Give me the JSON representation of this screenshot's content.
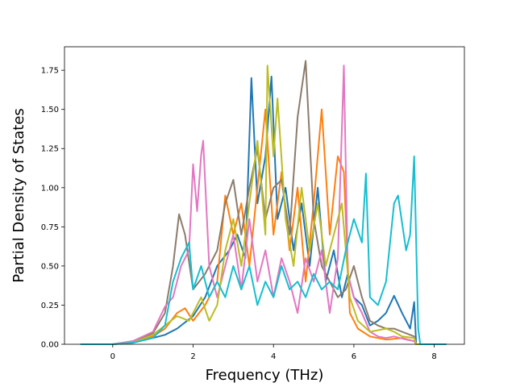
{
  "chart_data": {
    "type": "line",
    "xlabel": "Frequency (THz)",
    "ylabel": "Partial Density of States",
    "xlim": [
      -1.2,
      8.75
    ],
    "ylim": [
      0,
      1.9
    ],
    "x_ticks": [
      0,
      2,
      4,
      6,
      8
    ],
    "y_ticks": [
      0.0,
      0.25,
      0.5,
      0.75,
      1.0,
      1.25,
      1.5,
      1.75
    ],
    "x_tick_labels": [
      "0",
      "2",
      "4",
      "6",
      "8"
    ],
    "y_tick_labels": [
      "0.00",
      "0.25",
      "0.50",
      "0.75",
      "1.00",
      "1.25",
      "1.50",
      "1.75"
    ],
    "grid": false,
    "legend": "none",
    "series": [
      {
        "color": "#1f77b4",
        "points": [
          [
            -0.8,
            0
          ],
          [
            0,
            0
          ],
          [
            0.5,
            0.01
          ],
          [
            1.0,
            0.04
          ],
          [
            1.3,
            0.06
          ],
          [
            1.6,
            0.1
          ],
          [
            2.0,
            0.18
          ],
          [
            2.3,
            0.3
          ],
          [
            2.6,
            0.5
          ],
          [
            2.9,
            0.6
          ],
          [
            3.1,
            0.7
          ],
          [
            3.3,
            0.55
          ],
          [
            3.45,
            1.7
          ],
          [
            3.6,
            0.9
          ],
          [
            3.8,
            1.2
          ],
          [
            3.95,
            1.71
          ],
          [
            4.1,
            0.8
          ],
          [
            4.3,
            1.0
          ],
          [
            4.5,
            0.6
          ],
          [
            4.7,
            0.9
          ],
          [
            4.9,
            0.5
          ],
          [
            5.1,
            1.0
          ],
          [
            5.3,
            0.4
          ],
          [
            5.5,
            0.6
          ],
          [
            5.7,
            0.3
          ],
          [
            5.85,
            0.45
          ],
          [
            6.0,
            0.3
          ],
          [
            6.2,
            0.25
          ],
          [
            6.4,
            0.12
          ],
          [
            6.6,
            0.15
          ],
          [
            6.8,
            0.2
          ],
          [
            7.0,
            0.31
          ],
          [
            7.2,
            0.2
          ],
          [
            7.4,
            0.1
          ],
          [
            7.5,
            0.27
          ],
          [
            7.55,
            0
          ],
          [
            8.3,
            0
          ]
        ]
      },
      {
        "color": "#ff7f0e",
        "points": [
          [
            -0.8,
            0
          ],
          [
            0,
            0
          ],
          [
            0.5,
            0.01
          ],
          [
            1.0,
            0.05
          ],
          [
            1.3,
            0.1
          ],
          [
            1.6,
            0.2
          ],
          [
            1.8,
            0.23
          ],
          [
            2.0,
            0.15
          ],
          [
            2.3,
            0.25
          ],
          [
            2.6,
            0.4
          ],
          [
            2.8,
            0.95
          ],
          [
            3.0,
            0.7
          ],
          [
            3.2,
            0.9
          ],
          [
            3.4,
            0.5
          ],
          [
            3.6,
            1.0
          ],
          [
            3.8,
            1.5
          ],
          [
            4.0,
            0.7
          ],
          [
            4.2,
            1.1
          ],
          [
            4.4,
            0.6
          ],
          [
            4.6,
            1.0
          ],
          [
            4.8,
            0.4
          ],
          [
            5.0,
            0.9
          ],
          [
            5.2,
            1.5
          ],
          [
            5.4,
            0.7
          ],
          [
            5.6,
            1.2
          ],
          [
            5.75,
            1.1
          ],
          [
            5.9,
            0.2
          ],
          [
            6.1,
            0.1
          ],
          [
            6.4,
            0.05
          ],
          [
            6.8,
            0.03
          ],
          [
            7.2,
            0.04
          ],
          [
            7.5,
            0.02
          ],
          [
            7.55,
            0
          ],
          [
            8.3,
            0
          ]
        ]
      },
      {
        "color": "#8c7b6b",
        "points": [
          [
            -0.8,
            0
          ],
          [
            0,
            0
          ],
          [
            0.5,
            0.02
          ],
          [
            1.0,
            0.07
          ],
          [
            1.3,
            0.2
          ],
          [
            1.5,
            0.5
          ],
          [
            1.65,
            0.83
          ],
          [
            1.8,
            0.7
          ],
          [
            2.0,
            0.35
          ],
          [
            2.3,
            0.45
          ],
          [
            2.6,
            0.6
          ],
          [
            2.8,
            0.9
          ],
          [
            3.0,
            1.05
          ],
          [
            3.2,
            0.7
          ],
          [
            3.4,
            1.0
          ],
          [
            3.6,
            1.25
          ],
          [
            3.8,
            0.8
          ],
          [
            4.0,
            1.0
          ],
          [
            4.2,
            1.05
          ],
          [
            4.4,
            0.7
          ],
          [
            4.6,
            1.45
          ],
          [
            4.8,
            1.81
          ],
          [
            5.0,
            0.8
          ],
          [
            5.2,
            0.5
          ],
          [
            5.4,
            0.4
          ],
          [
            5.6,
            0.3
          ],
          [
            5.8,
            0.35
          ],
          [
            6.0,
            0.5
          ],
          [
            6.2,
            0.3
          ],
          [
            6.4,
            0.15
          ],
          [
            6.6,
            0.12
          ],
          [
            6.8,
            0.1
          ],
          [
            7.0,
            0.1
          ],
          [
            7.2,
            0.08
          ],
          [
            7.5,
            0.05
          ],
          [
            7.55,
            0
          ],
          [
            8.3,
            0
          ]
        ]
      },
      {
        "color": "#e377c2",
        "points": [
          [
            -0.8,
            0
          ],
          [
            0,
            0
          ],
          [
            0.5,
            0.02
          ],
          [
            1.0,
            0.08
          ],
          [
            1.3,
            0.24
          ],
          [
            1.5,
            0.3
          ],
          [
            1.7,
            0.5
          ],
          [
            1.9,
            0.6
          ],
          [
            2.0,
            1.15
          ],
          [
            2.1,
            0.85
          ],
          [
            2.2,
            1.21
          ],
          [
            2.25,
            1.3
          ],
          [
            2.4,
            0.5
          ],
          [
            2.6,
            0.3
          ],
          [
            2.8,
            0.5
          ],
          [
            3.0,
            0.7
          ],
          [
            3.2,
            0.35
          ],
          [
            3.4,
            0.8
          ],
          [
            3.6,
            0.4
          ],
          [
            3.8,
            0.6
          ],
          [
            4.0,
            0.3
          ],
          [
            4.2,
            0.55
          ],
          [
            4.4,
            0.4
          ],
          [
            4.6,
            0.2
          ],
          [
            4.8,
            0.55
          ],
          [
            5.0,
            0.4
          ],
          [
            5.2,
            0.6
          ],
          [
            5.4,
            0.2
          ],
          [
            5.6,
            0.55
          ],
          [
            5.75,
            1.78
          ],
          [
            5.85,
            0.45
          ],
          [
            6.0,
            0.3
          ],
          [
            6.2,
            0.2
          ],
          [
            6.4,
            0.08
          ],
          [
            6.6,
            0.05
          ],
          [
            6.8,
            0.04
          ],
          [
            7.0,
            0.05
          ],
          [
            7.3,
            0.03
          ],
          [
            7.5,
            0.02
          ],
          [
            7.55,
            0
          ],
          [
            8.3,
            0
          ]
        ]
      },
      {
        "color": "#bcbd22",
        "points": [
          [
            -0.8,
            0
          ],
          [
            0,
            0
          ],
          [
            0.5,
            0.01
          ],
          [
            1.0,
            0.06
          ],
          [
            1.3,
            0.12
          ],
          [
            1.6,
            0.18
          ],
          [
            1.9,
            0.15
          ],
          [
            2.2,
            0.3
          ],
          [
            2.4,
            0.15
          ],
          [
            2.6,
            0.25
          ],
          [
            2.8,
            0.6
          ],
          [
            3.0,
            0.8
          ],
          [
            3.2,
            0.5
          ],
          [
            3.4,
            0.9
          ],
          [
            3.6,
            1.3
          ],
          [
            3.8,
            0.7
          ],
          [
            3.85,
            1.78
          ],
          [
            4.0,
            1.2
          ],
          [
            4.1,
            1.57
          ],
          [
            4.3,
            0.8
          ],
          [
            4.5,
            0.5
          ],
          [
            4.7,
            1.0
          ],
          [
            4.9,
            0.6
          ],
          [
            5.1,
            0.9
          ],
          [
            5.3,
            0.5
          ],
          [
            5.5,
            0.7
          ],
          [
            5.7,
            0.9
          ],
          [
            5.9,
            0.3
          ],
          [
            6.1,
            0.15
          ],
          [
            6.4,
            0.08
          ],
          [
            6.8,
            0.1
          ],
          [
            7.0,
            0.08
          ],
          [
            7.2,
            0.05
          ],
          [
            7.5,
            0.04
          ],
          [
            7.55,
            0
          ],
          [
            8.3,
            0
          ]
        ]
      },
      {
        "color": "#17becf",
        "points": [
          [
            -0.8,
            0
          ],
          [
            0,
            0
          ],
          [
            0.5,
            0.01
          ],
          [
            1.0,
            0.04
          ],
          [
            1.3,
            0.12
          ],
          [
            1.5,
            0.4
          ],
          [
            1.7,
            0.55
          ],
          [
            1.9,
            0.65
          ],
          [
            2.0,
            0.35
          ],
          [
            2.2,
            0.5
          ],
          [
            2.4,
            0.3
          ],
          [
            2.6,
            0.4
          ],
          [
            2.8,
            0.3
          ],
          [
            3.0,
            0.5
          ],
          [
            3.2,
            0.35
          ],
          [
            3.4,
            0.5
          ],
          [
            3.6,
            0.25
          ],
          [
            3.8,
            0.4
          ],
          [
            4.0,
            0.3
          ],
          [
            4.2,
            0.5
          ],
          [
            4.4,
            0.35
          ],
          [
            4.6,
            0.4
          ],
          [
            4.8,
            0.3
          ],
          [
            5.0,
            0.45
          ],
          [
            5.2,
            0.35
          ],
          [
            5.4,
            0.4
          ],
          [
            5.6,
            0.35
          ],
          [
            5.8,
            0.6
          ],
          [
            6.0,
            0.8
          ],
          [
            6.2,
            0.65
          ],
          [
            6.3,
            1.09
          ],
          [
            6.4,
            0.3
          ],
          [
            6.6,
            0.25
          ],
          [
            6.8,
            0.4
          ],
          [
            7.0,
            0.9
          ],
          [
            7.1,
            0.95
          ],
          [
            7.3,
            0.6
          ],
          [
            7.4,
            0.7
          ],
          [
            7.5,
            1.2
          ],
          [
            7.6,
            0.1
          ],
          [
            7.65,
            0
          ],
          [
            8.3,
            0
          ]
        ]
      }
    ]
  }
}
